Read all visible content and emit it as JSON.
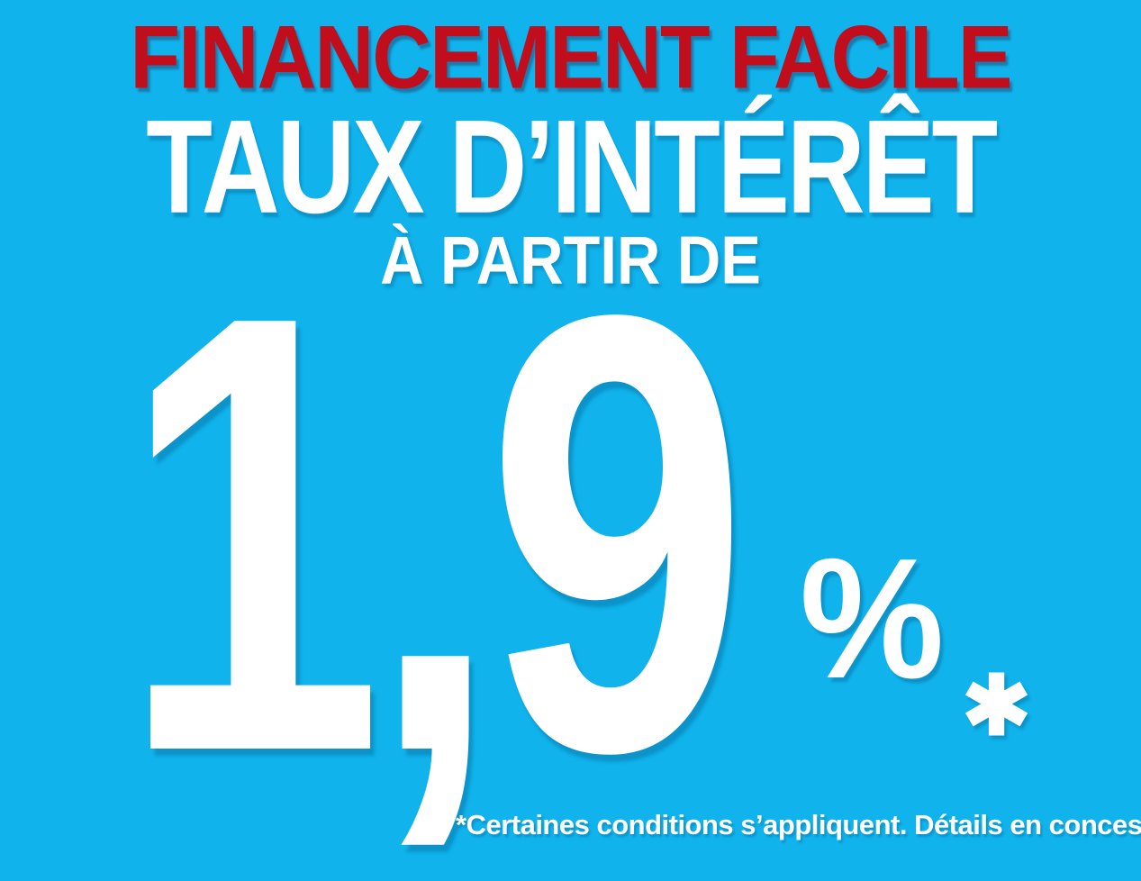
{
  "banner": {
    "colors": {
      "background": "#10b3ec",
      "headline_red": "#c00e1d",
      "text": "#ffffff"
    },
    "headline": "FINANCEMENT FACILE",
    "title": "TAUX D’INTÉRÊT",
    "subtitle": "À PARTIR DE",
    "rate": {
      "value": "1,9",
      "unit": "%",
      "asterisk_mark": "✱"
    },
    "disclaimer": "*Certaines conditions s’appliquent. Détails en concession."
  }
}
